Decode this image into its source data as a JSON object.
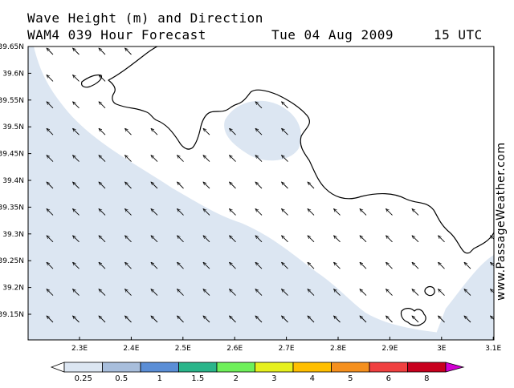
{
  "header": {
    "title": "Wave Height (m) and Direction",
    "model": "WAM4 039 Hour Forecast",
    "date": "Tue 04 Aug 2009",
    "time": "15 UTC"
  },
  "credit": "www.PassageWeather.com",
  "map": {
    "lat_labels": [
      "39.65N",
      "39.6N",
      "39.55N",
      "39.5N",
      "39.45N",
      "39.4N",
      "39.35N",
      "39.3N",
      "39.25N",
      "39.2N",
      "39.15N"
    ],
    "lon_labels": [
      "2.3E",
      "2.4E",
      "2.5E",
      "2.6E",
      "2.7E",
      "2.8E",
      "2.9E",
      "3E",
      "3.1E"
    ],
    "lat_range": [
      39.1,
      39.65
    ],
    "lon_range": [
      2.2,
      3.1
    ],
    "arrow_direction": "north-west",
    "colors": {
      "sea": "#ffffff",
      "low_wave": "#dce6f2",
      "land": "#ffffff",
      "coast": "#000000"
    }
  },
  "legend": {
    "labels": [
      "0.25",
      "0.5",
      "1",
      "1.5",
      "2",
      "3",
      "4",
      "5",
      "6",
      "8"
    ],
    "colors": [
      "#ffffff",
      "#dce6f2",
      "#a8bedc",
      "#5b8ed6",
      "#2ab58a",
      "#6ef05a",
      "#e6f01e",
      "#ffbf00",
      "#f5901e",
      "#f04040",
      "#c8001e",
      "#d200d2"
    ]
  }
}
